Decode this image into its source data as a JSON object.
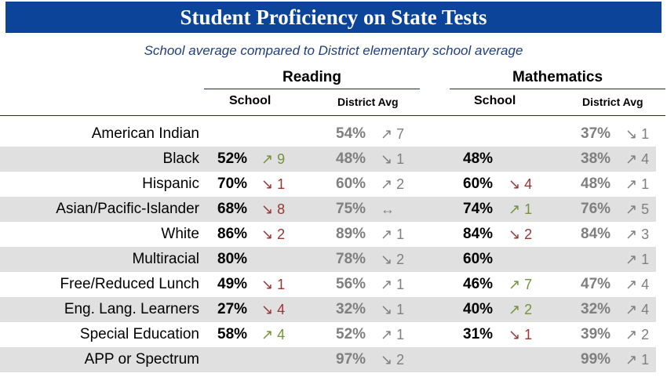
{
  "title": "Student Proficiency on State Tests",
  "subtitle": "School average compared to District elementary school average",
  "groups": {
    "reading": "Reading",
    "math": "Mathematics"
  },
  "subheaders": {
    "school": "School",
    "district": "District Avg"
  },
  "colors": {
    "up_school": "#76923c",
    "down_school": "#953735",
    "district_change": "#7f7f7f",
    "header_bg": "#0c4499"
  },
  "rows": [
    {
      "label": "American Indian",
      "r_school": "",
      "r_school_chg": "",
      "r_dist": "54%",
      "r_dist_chg": "↗ 7",
      "m_school": "",
      "m_school_chg": "",
      "m_dist": "37%",
      "m_dist_chg": "↘ 1"
    },
    {
      "label": "Black",
      "r_school": "52%",
      "r_school_chg": "↗ 9",
      "r_dist": "48%",
      "r_dist_chg": "↘ 1",
      "m_school": "48%",
      "m_school_chg": "",
      "m_dist": "38%",
      "m_dist_chg": "↗ 4"
    },
    {
      "label": "Hispanic",
      "r_school": "70%",
      "r_school_chg": "↘ 1",
      "r_dist": "60%",
      "r_dist_chg": "↗ 2",
      "m_school": "60%",
      "m_school_chg": "↘ 4",
      "m_dist": "48%",
      "m_dist_chg": "↗ 1"
    },
    {
      "label": "Asian/Pacific-Islander",
      "r_school": "68%",
      "r_school_chg": "↘ 8",
      "r_dist": "75%",
      "r_dist_chg": "↔",
      "m_school": "74%",
      "m_school_chg": "↗ 1",
      "m_dist": "76%",
      "m_dist_chg": "↗ 5"
    },
    {
      "label": "White",
      "r_school": "86%",
      "r_school_chg": "↘ 2",
      "r_dist": "89%",
      "r_dist_chg": "↗ 1",
      "m_school": "84%",
      "m_school_chg": "↘ 2",
      "m_dist": "84%",
      "m_dist_chg": "↗ 3"
    },
    {
      "label": "Multiracial",
      "r_school": "80%",
      "r_school_chg": "",
      "r_dist": "78%",
      "r_dist_chg": "↘ 2",
      "m_school": "60%",
      "m_school_chg": "",
      "m_dist": "",
      "m_dist_chg": "↗ 1"
    },
    {
      "label": "Free/Reduced Lunch",
      "r_school": "49%",
      "r_school_chg": "↘ 1",
      "r_dist": "56%",
      "r_dist_chg": "↗ 1",
      "m_school": "46%",
      "m_school_chg": "↗ 7",
      "m_dist": "47%",
      "m_dist_chg": "↗ 4"
    },
    {
      "label": "Eng. Lang. Learners",
      "r_school": "27%",
      "r_school_chg": "↘ 4",
      "r_dist": "32%",
      "r_dist_chg": "↘ 1",
      "m_school": "40%",
      "m_school_chg": "↗ 2",
      "m_dist": "32%",
      "m_dist_chg": "↗ 4"
    },
    {
      "label": "Special Education",
      "r_school": "58%",
      "r_school_chg": "↗ 4",
      "r_dist": "52%",
      "r_dist_chg": "↗ 1",
      "m_school": "31%",
      "m_school_chg": "↘ 1",
      "m_dist": "39%",
      "m_dist_chg": "↗ 2"
    },
    {
      "label": "APP or Spectrum",
      "r_school": "",
      "r_school_chg": "",
      "r_dist": "97%",
      "r_dist_chg": "↘ 2",
      "m_school": "",
      "m_school_chg": "",
      "m_dist": "99%",
      "m_dist_chg": "↗ 1"
    }
  ]
}
